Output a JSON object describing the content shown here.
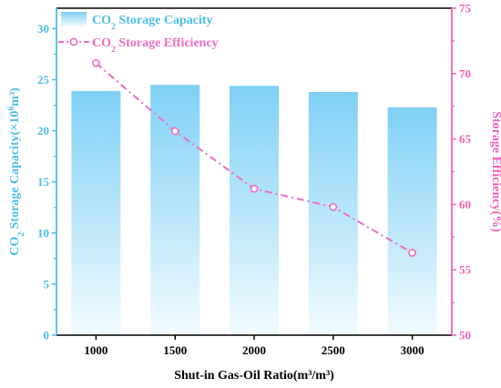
{
  "chart_data": {
    "type": "bar+line",
    "categories": [
      "1000",
      "1500",
      "2000",
      "2500",
      "3000"
    ],
    "series": [
      {
        "name": "CO2 Storage Capacity",
        "type": "bar",
        "axis": "left",
        "values": [
          23.9,
          24.5,
          24.4,
          23.8,
          22.3
        ]
      },
      {
        "name": "CO2 Storage Efficiency",
        "type": "line",
        "axis": "right",
        "values": [
          70.8,
          65.6,
          61.2,
          59.8,
          56.3
        ]
      }
    ],
    "xlabel": "Shut-in Gas-Oil Ratio(m³/m³)",
    "ylabel_left": {
      "prefix": "CO",
      "sub": "2",
      "mid": " Storage Capacity(×10",
      "sup": "6",
      "suffix": "m³)"
    },
    "ylabel_right": "Storage Efficiency(%)",
    "ylim_left": [
      0,
      32
    ],
    "ylim_right": [
      50,
      75
    ],
    "yticks_left": [
      "0",
      "5",
      "10",
      "15",
      "20",
      "25",
      "30"
    ],
    "yticks_right": [
      "50",
      "55",
      "60",
      "65",
      "70",
      "75"
    ],
    "legend": {
      "placement": "top-left",
      "bar_label": {
        "prefix": "CO",
        "sub": "2",
        "suffix": " Storage Capacity"
      },
      "line_label": {
        "prefix": "CO",
        "sub": "2",
        "suffix": " Storage Efficiency"
      }
    },
    "colors": {
      "bar_top": "#7fd0f5",
      "bar_bottom": "#f2fbfe",
      "left_axis": "#4bbde9",
      "right_axis": "#f05fb6",
      "line": "#ee6cc3",
      "frame": "#000000"
    }
  }
}
